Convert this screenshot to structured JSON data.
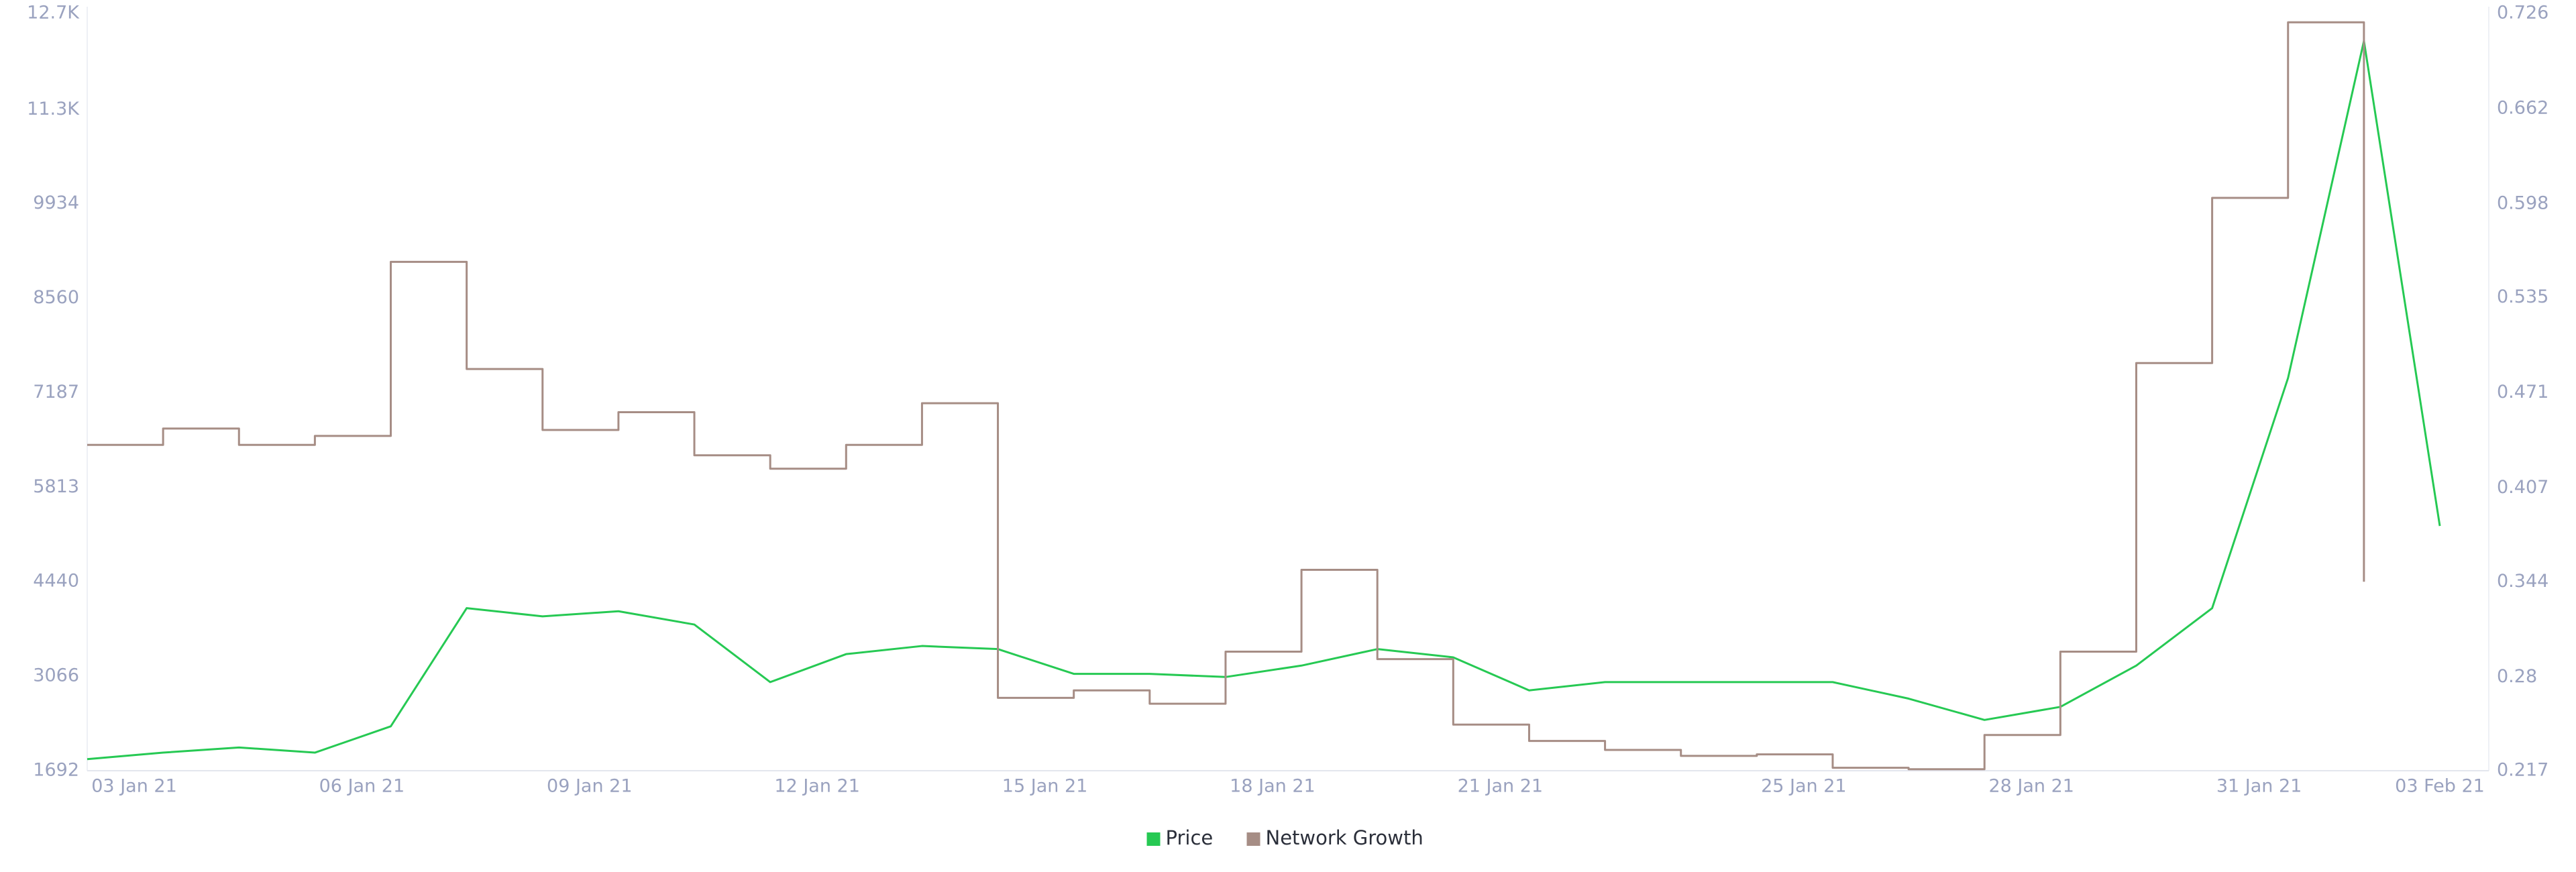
{
  "chart_data": {
    "type": "line",
    "categories": [
      "03 Jan 21",
      null,
      null,
      "06 Jan 21",
      null,
      null,
      "09 Jan 21",
      null,
      null,
      "12 Jan 21",
      null,
      null,
      "15 Jan 21",
      null,
      null,
      "18 Jan 21",
      null,
      null,
      "21 Jan 21",
      null,
      null,
      null,
      "25 Jan 21",
      null,
      null,
      "28 Jan 21",
      null,
      null,
      "31 Jan 21",
      null,
      null,
      "03 Feb 21"
    ],
    "series": [
      {
        "name": "Price",
        "color": "#26c953",
        "axis": "y",
        "values": [
          1860,
          1955,
          2030,
          1955,
          2337,
          4055,
          3936,
          4010,
          3817,
          2980,
          3387,
          3505,
          3460,
          3100,
          3100,
          3054,
          3220,
          3460,
          3340,
          2860,
          2980,
          2980,
          2980,
          2980,
          2740,
          2430,
          2620,
          3220,
          4055,
          7400,
          12300,
          5250
        ]
      },
      {
        "name": "Network Growth",
        "color": "#a68d85",
        "axis": "y2",
        "step": "after",
        "values": [
          0.436,
          0.447,
          0.436,
          0.442,
          0.559,
          0.487,
          0.446,
          0.458,
          0.429,
          0.42,
          0.436,
          0.464,
          0.266,
          0.271,
          0.262,
          0.297,
          0.352,
          0.292,
          0.248,
          0.237,
          0.231,
          0.227,
          0.228,
          0.219,
          0.218,
          0.241,
          0.297,
          0.491,
          0.602,
          0.72,
          0.344,
          null
        ]
      }
    ],
    "ylim": [
      1692,
      12700
    ],
    "yticks": [
      1692,
      3066,
      4440,
      5813,
      7187,
      8560,
      9934,
      {
        "value": 11300,
        "label": "11.3K"
      },
      {
        "value": 12700,
        "label": "12.7K"
      }
    ],
    "y2lim": [
      0.217,
      0.726
    ],
    "y2ticks": [
      0.217,
      0.28,
      0.344,
      0.407,
      0.471,
      0.535,
      0.598,
      0.662,
      0.726
    ],
    "legend": "bottom"
  }
}
